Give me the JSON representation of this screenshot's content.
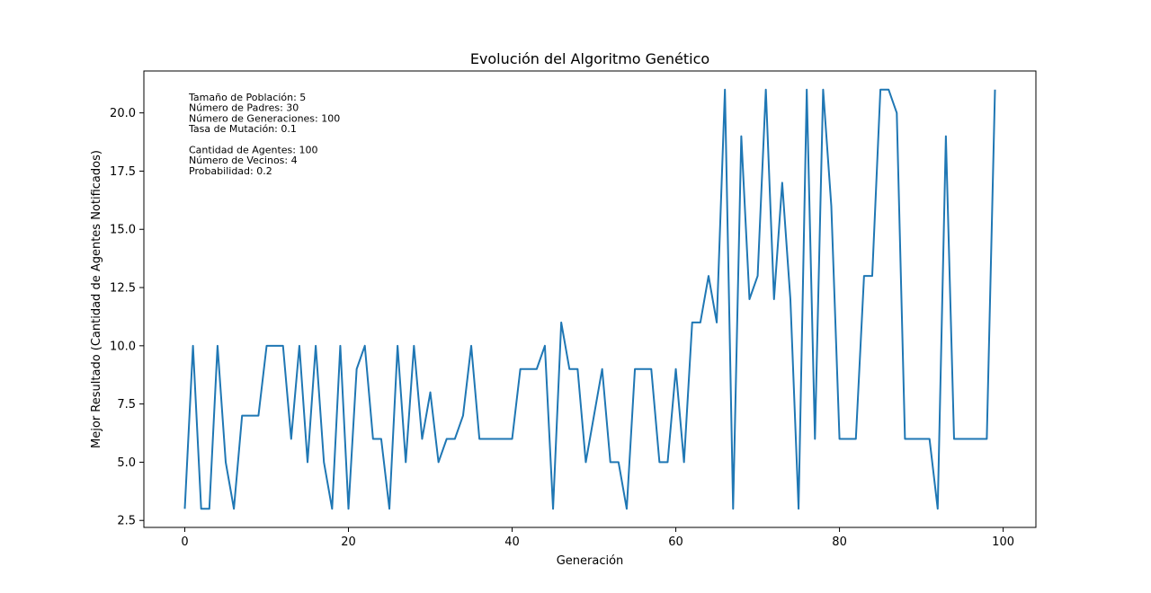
{
  "chart_data": {
    "type": "line",
    "title": "Evolución del Algoritmo Genético",
    "xlabel": "Generación",
    "ylabel": "Mejor Resultado (Cantidad de Agentes Notificados)",
    "xlim": [
      -5,
      104
    ],
    "ylim": [
      2.2,
      21.8
    ],
    "xticks": [
      0,
      20,
      40,
      60,
      80,
      100
    ],
    "xtick_labels": [
      "0",
      "20",
      "40",
      "60",
      "80",
      "100"
    ],
    "yticks": [
      2.5,
      5.0,
      7.5,
      10.0,
      12.5,
      15.0,
      17.5,
      20.0
    ],
    "ytick_labels": [
      "2.5",
      "5.0",
      "7.5",
      "10.0",
      "12.5",
      "15.0",
      "17.5",
      "20.0"
    ],
    "grid": false,
    "series": [
      {
        "color": "#1f77b4",
        "x": [
          0,
          1,
          2,
          3,
          4,
          5,
          6,
          7,
          8,
          9,
          10,
          11,
          12,
          13,
          14,
          15,
          16,
          17,
          18,
          19,
          20,
          21,
          22,
          23,
          24,
          25,
          26,
          27,
          28,
          29,
          30,
          31,
          32,
          33,
          34,
          35,
          36,
          37,
          38,
          39,
          40,
          41,
          42,
          43,
          44,
          45,
          46,
          47,
          48,
          49,
          50,
          51,
          52,
          53,
          54,
          55,
          56,
          57,
          58,
          59,
          60,
          61,
          62,
          63,
          64,
          65,
          66,
          67,
          68,
          69,
          70,
          71,
          72,
          73,
          74,
          75,
          76,
          77,
          78,
          79,
          80,
          81,
          82,
          83,
          84,
          85,
          86,
          87,
          88,
          89,
          90,
          91,
          92,
          93,
          94,
          95,
          96,
          97,
          98,
          99
        ],
        "values": [
          3,
          10,
          3,
          3,
          10,
          5,
          3,
          7,
          7,
          7,
          10,
          10,
          10,
          6,
          10,
          5,
          10,
          5,
          3,
          10,
          3,
          9,
          10,
          6,
          6,
          3,
          10,
          5,
          10,
          6,
          8,
          5,
          6,
          6,
          7,
          10,
          6,
          6,
          6,
          6,
          6,
          9,
          9,
          9,
          10,
          3,
          11,
          9,
          9,
          5,
          7,
          9,
          5,
          5,
          3,
          9,
          9,
          9,
          5,
          5,
          9,
          5,
          11,
          11,
          13,
          11,
          21,
          3,
          19,
          12,
          13,
          21,
          12,
          17,
          12,
          3,
          21,
          6,
          21,
          16,
          6,
          6,
          6,
          13,
          13,
          21,
          21,
          20,
          6,
          6,
          6,
          6,
          3,
          19,
          6,
          6,
          6,
          6,
          6,
          21
        ]
      }
    ],
    "annotations": [
      "Tamaño de Población: 5",
      "Número de Padres: 30",
      "Número de Generaciones: 100",
      "Tasa de Mutación: 0.1",
      "",
      "Cantidad de Agentes: 100",
      "Número de Vecinos: 4",
      "Probabilidad: 0.2"
    ]
  }
}
